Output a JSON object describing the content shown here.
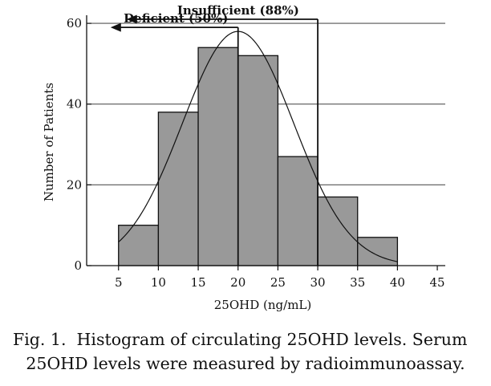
{
  "chart_data": {
    "type": "bar",
    "chart_kind": "histogram",
    "bins": [
      {
        "from": 5,
        "to": 10,
        "count": 10
      },
      {
        "from": 10,
        "to": 15,
        "count": 38
      },
      {
        "from": 15,
        "to": 20,
        "count": 54
      },
      {
        "from": 20,
        "to": 25,
        "count": 52
      },
      {
        "from": 25,
        "to": 30,
        "count": 27
      },
      {
        "from": 30,
        "to": 35,
        "count": 17
      },
      {
        "from": 35,
        "to": 40,
        "count": 7
      }
    ],
    "xlabel": "25OHD (ng/mL)",
    "ylabel": "Number of Patients",
    "xlim": [
      1,
      46
    ],
    "ylim": [
      0,
      62
    ],
    "xticks": [
      5,
      10,
      15,
      20,
      25,
      30,
      35,
      40,
      45
    ],
    "yticks": [
      0,
      20,
      40,
      60
    ],
    "grid": "horizontal",
    "colors": {
      "bar_fill": "#999999",
      "bar_edge": "#111111",
      "grid": "#555555"
    },
    "fit_curve": {
      "type": "normal",
      "mean": 20,
      "sd": 7.0,
      "peak": 58,
      "x_range": [
        5,
        40
      ]
    },
    "annotations": [
      {
        "label": "Insufficient (88%)",
        "threshold": 30,
        "arrow_to": 6,
        "level": 61
      },
      {
        "label": "Deficient (50%)",
        "threshold": 20,
        "arrow_to": 4,
        "level": 59
      }
    ]
  },
  "caption": {
    "line1": "Fig. 1.  Histogram of circulating 25OHD levels. Serum",
    "line2": "25OHD levels were measured by radioimmunoassay."
  }
}
